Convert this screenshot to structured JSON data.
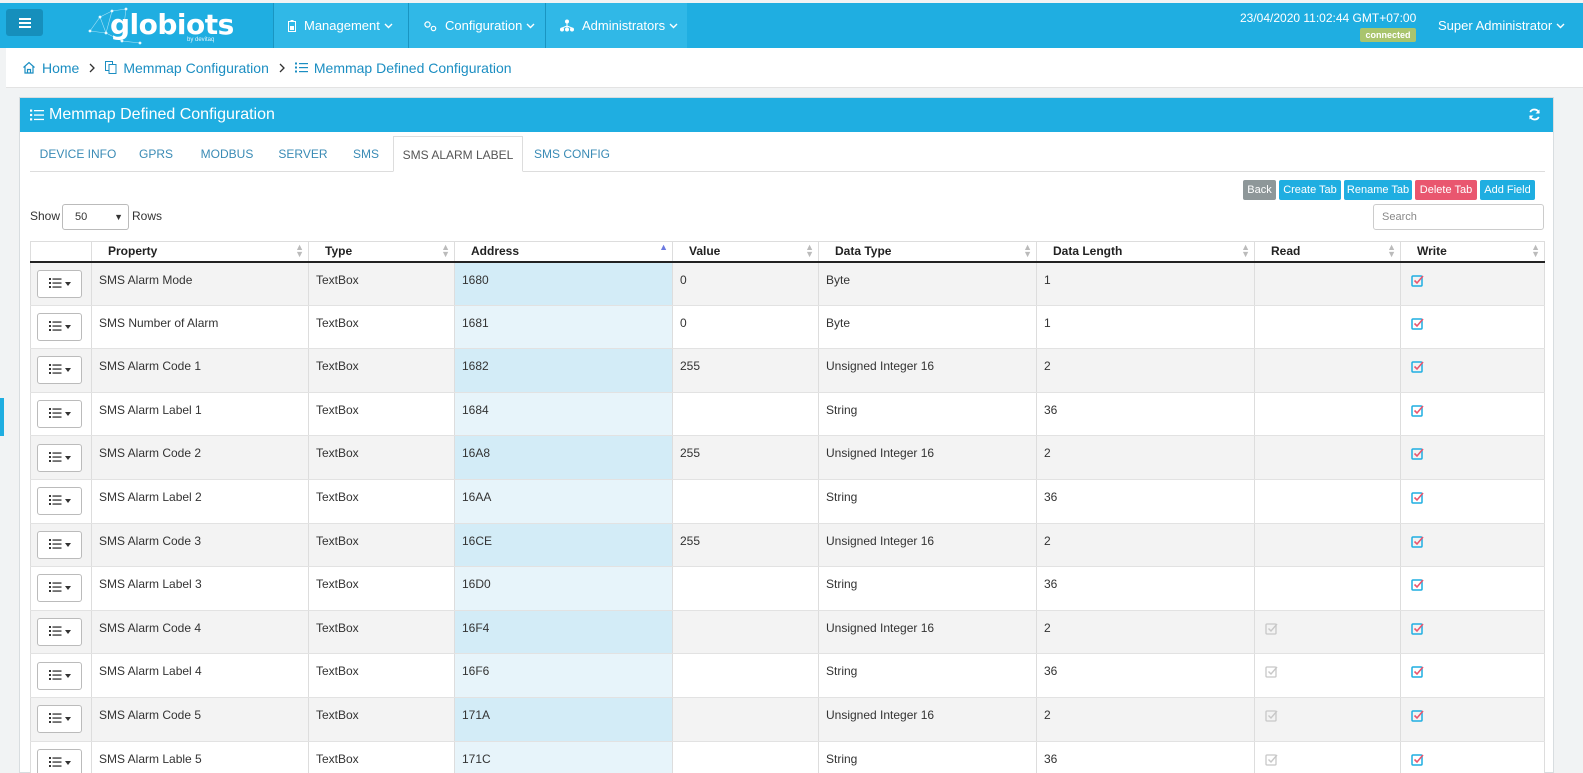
{
  "header": {
    "logo_text": "globiots",
    "logo_sub": "by devitaq",
    "nav": [
      {
        "label": "Management",
        "icon": "battery-icon"
      },
      {
        "label": "Configuration",
        "icon": "gears-icon"
      },
      {
        "label": "Administrators",
        "icon": "sitemap-icon"
      }
    ],
    "datetime": "23/04/2020 11:02:44 GMT+07:00",
    "status": "connected",
    "user": "Super Administrator",
    "colors": {
      "primary": "#1faee1",
      "connected": "#a9c46d",
      "danger": "#e9566f",
      "muted": "#8e9799"
    }
  },
  "breadcrumb": {
    "items": [
      {
        "label": "Home",
        "icon": "home-icon"
      },
      {
        "label": "Memmap Configuration",
        "icon": "copy-icon"
      },
      {
        "label": "Memmap Defined Configuration",
        "icon": "list-icon"
      }
    ]
  },
  "panel": {
    "title": "Memmap Defined Configuration",
    "tabs": [
      "DEVICE INFO",
      "GPRS",
      "MODBUS",
      "SERVER",
      "SMS",
      "SMS ALARM LABEL",
      "SMS CONFIG"
    ],
    "active_tab": "SMS ALARM LABEL",
    "buttons": {
      "back": "Back",
      "create": "Create Tab",
      "rename": "Rename Tab",
      "delete": "Delete Tab",
      "add": "Add Field"
    },
    "show_label": "Show",
    "page_size": "50",
    "rows_label": "Rows",
    "search_placeholder": "Search"
  },
  "table": {
    "columns": [
      "",
      "Property",
      "Type",
      "Address",
      "Value",
      "Data Type",
      "Data Length",
      "Read",
      "Write"
    ],
    "sorted_column": "Address",
    "rows": [
      {
        "property": "SMS Alarm Mode",
        "type": "TextBox",
        "address": "1680",
        "value": "0",
        "data_type": "Byte",
        "data_length": "1",
        "read": false,
        "write": true
      },
      {
        "property": "SMS Number of Alarm",
        "type": "TextBox",
        "address": "1681",
        "value": "0",
        "data_type": "Byte",
        "data_length": "1",
        "read": false,
        "write": true
      },
      {
        "property": "SMS Alarm Code 1",
        "type": "TextBox",
        "address": "1682",
        "value": "255",
        "data_type": "Unsigned Integer 16",
        "data_length": "2",
        "read": false,
        "write": true
      },
      {
        "property": "SMS Alarm Label 1",
        "type": "TextBox",
        "address": "1684",
        "value": "",
        "data_type": "String",
        "data_length": "36",
        "read": false,
        "write": true
      },
      {
        "property": "SMS Alarm Code 2",
        "type": "TextBox",
        "address": "16A8",
        "value": "255",
        "data_type": "Unsigned Integer 16",
        "data_length": "2",
        "read": false,
        "write": true
      },
      {
        "property": "SMS Alarm Label 2",
        "type": "TextBox",
        "address": "16AA",
        "value": "",
        "data_type": "String",
        "data_length": "36",
        "read": false,
        "write": true
      },
      {
        "property": "SMS Alarm Code 3",
        "type": "TextBox",
        "address": "16CE",
        "value": "255",
        "data_type": "Unsigned Integer 16",
        "data_length": "2",
        "read": false,
        "write": true
      },
      {
        "property": "SMS Alarm Label 3",
        "type": "TextBox",
        "address": "16D0",
        "value": "",
        "data_type": "String",
        "data_length": "36",
        "read": false,
        "write": true
      },
      {
        "property": "SMS Alarm Code 4",
        "type": "TextBox",
        "address": "16F4",
        "value": "",
        "data_type": "Unsigned Integer 16",
        "data_length": "2",
        "read": true,
        "write": true
      },
      {
        "property": "SMS Alarm Label 4",
        "type": "TextBox",
        "address": "16F6",
        "value": "",
        "data_type": "String",
        "data_length": "36",
        "read": true,
        "write": true
      },
      {
        "property": "SMS Alarm Code 5",
        "type": "TextBox",
        "address": "171A",
        "value": "",
        "data_type": "Unsigned Integer 16",
        "data_length": "2",
        "read": true,
        "write": true
      },
      {
        "property": "SMS Alarm Lable 5",
        "type": "TextBox",
        "address": "171C",
        "value": "",
        "data_type": "String",
        "data_length": "36",
        "read": true,
        "write": true
      }
    ]
  }
}
